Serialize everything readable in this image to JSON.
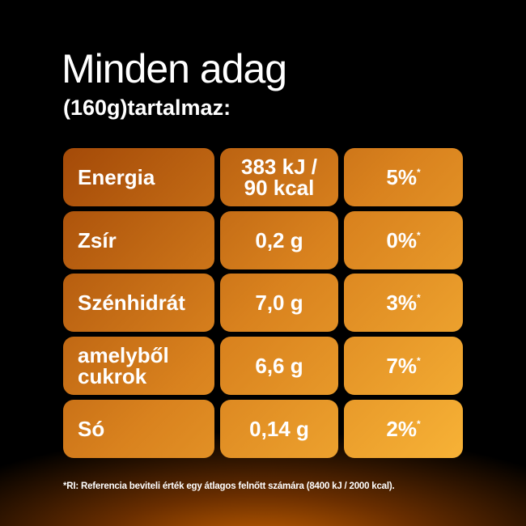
{
  "header": {
    "title": "Minden adag",
    "subtitle": "(160g)tartalmaz:"
  },
  "table": {
    "rows": [
      {
        "label": [
          "Energia"
        ],
        "amount": [
          "383 kJ /",
          "90 kcal"
        ],
        "percent": "5%",
        "mark": "*"
      },
      {
        "label": [
          "Zsír"
        ],
        "amount": [
          "0,2 g"
        ],
        "percent": "0%",
        "mark": "*"
      },
      {
        "label": [
          "Szénhidrát"
        ],
        "amount": [
          "7,0 g"
        ],
        "percent": "3%",
        "mark": "*"
      },
      {
        "label": [
          "amelyből",
          "cukrok"
        ],
        "amount": [
          "6,6 g"
        ],
        "percent": "7%",
        "mark": "*"
      },
      {
        "label": [
          "Só"
        ],
        "amount": [
          "0,14 g"
        ],
        "percent": "2%",
        "mark": "*"
      }
    ]
  },
  "footnote": "*RI: Referencia beviteli érték egy átlagos felnőtt számára (8400 kJ / 2000 kcal)."
}
